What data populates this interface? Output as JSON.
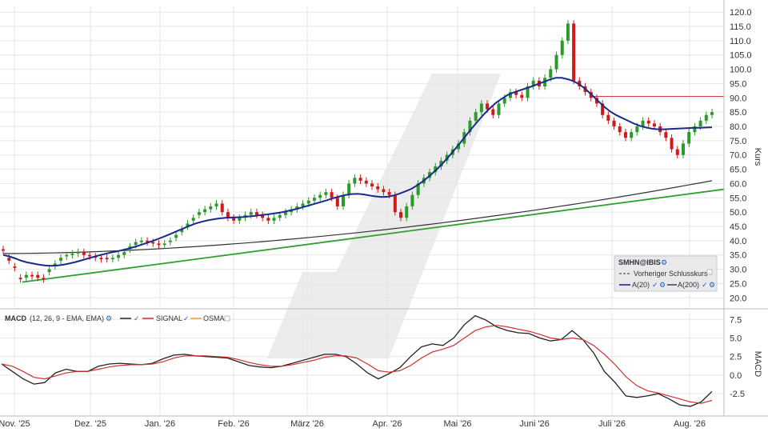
{
  "chart_data": [
    {
      "type": "candlestick",
      "ylabel": "Kurs",
      "ylim": [
        17,
        122
      ],
      "yticks": [
        "120.0",
        "115.0",
        "110.0",
        "105.0",
        "100.0",
        "95.0",
        "90.0",
        "85.0",
        "80.0",
        "75.0",
        "70.0",
        "65.0",
        "60.0",
        "55.0",
        "50.0",
        "45.0",
        "40.0",
        "35.0",
        "30.0",
        "25.0",
        "20.0"
      ],
      "ytick_values": [
        120,
        115,
        110,
        105,
        100,
        95,
        90,
        85,
        80,
        75,
        70,
        65,
        60,
        55,
        50,
        45,
        40,
        35,
        30,
        25,
        20
      ],
      "xticks": [
        "Nov. '25",
        "Dez. '25",
        "Jan. '26",
        "Feb. '26",
        "März '26",
        "Apr. '26",
        "Mai '26",
        "Juni '26",
        "Juli '26",
        "Aug. '26"
      ],
      "candles_close": [
        36.5,
        33,
        30.5,
        26.5,
        28,
        27.5,
        27,
        26.5,
        30,
        32,
        34,
        35,
        35.5,
        36,
        35,
        34.5,
        34,
        33.5,
        33.5,
        34,
        35,
        36,
        38,
        39.5,
        40,
        39.5,
        39,
        38.5,
        39,
        40,
        42,
        44,
        46,
        48,
        50,
        51,
        52,
        53,
        50,
        48,
        47,
        48,
        49,
        50,
        49,
        48,
        47,
        48,
        49,
        50,
        51,
        52,
        53,
        54,
        55,
        56,
        57,
        55,
        52,
        56,
        60,
        62,
        61,
        60,
        59,
        58,
        57,
        56,
        50,
        48,
        52,
        56,
        60,
        62,
        64,
        66,
        68,
        70,
        72,
        74,
        78,
        82,
        85,
        88,
        86,
        84,
        88,
        90,
        92,
        91,
        90,
        94,
        96,
        94,
        97,
        100,
        105,
        110,
        116,
        96,
        94,
        92,
        90,
        88,
        84,
        82,
        80,
        78,
        76,
        78,
        80,
        82,
        81,
        80,
        78,
        76,
        72,
        70,
        74,
        78,
        80,
        82,
        84,
        85
      ],
      "candles_open": [
        37,
        34,
        31,
        27,
        27,
        28,
        28,
        27,
        29,
        31,
        33,
        34.5,
        35,
        35.5,
        36,
        35,
        34.5,
        34,
        34,
        33.5,
        34,
        35,
        37,
        38.5,
        39.5,
        40,
        39.5,
        39,
        38.5,
        39.5,
        41,
        43,
        45,
        47,
        49,
        50,
        51,
        52,
        53,
        50,
        48,
        47,
        48,
        49,
        50,
        49,
        48,
        47,
        48,
        49,
        50,
        51,
        52,
        53,
        54,
        55,
        56,
        57,
        55,
        52,
        56,
        60,
        62,
        61,
        60,
        59,
        58,
        57,
        56,
        50,
        48,
        52,
        56,
        60,
        62,
        64,
        66,
        68,
        70,
        72,
        74,
        78,
        82,
        85,
        88,
        86,
        84,
        88,
        90,
        92,
        91,
        90,
        94,
        96,
        94,
        97,
        100,
        105,
        110,
        116,
        96,
        94,
        92,
        90,
        88,
        84,
        82,
        80,
        78,
        76,
        78,
        80,
        82,
        81,
        80,
        78,
        76,
        72,
        70,
        74,
        78,
        80,
        82,
        84
      ],
      "ma20": [
        35,
        34.5,
        33.8,
        33,
        32.4,
        32,
        31.6,
        31.3,
        31.2,
        31.3,
        31.6,
        32,
        32.5,
        33.1,
        33.7,
        34.3,
        34.9,
        35.4,
        35.9,
        36.3,
        36.8,
        37.3,
        37.9,
        38.6,
        39.3,
        40,
        40.8,
        41.6,
        42.5,
        43.4,
        44.3,
        45.2,
        46,
        46.6,
        47.1,
        47.5,
        47.8,
        48,
        48.1,
        48.2,
        48.3,
        48.5,
        48.7,
        49,
        49.2,
        49.5,
        49.8,
        50.2,
        50.7,
        51.2,
        51.8,
        52.4,
        53,
        53.6,
        54.2,
        54.9,
        55.5,
        56,
        56.3,
        56.4,
        56.2,
        55.8,
        55.5,
        55.3,
        55.4,
        55.8,
        56.5,
        57.3,
        58.2,
        59.5,
        61,
        62.7,
        64.6,
        66.7,
        69,
        71.5,
        74,
        76.7,
        79.3,
        81.8,
        84.2,
        86.3,
        88.2,
        89.7,
        91,
        91.9,
        92.6,
        93.3,
        94,
        94.8,
        95.6,
        96.4,
        97,
        97,
        96.5,
        95.8,
        94.6,
        93,
        91,
        89,
        87,
        85.3,
        84,
        83,
        82,
        81,
        80.2,
        79.6,
        79.2,
        79,
        79,
        79.1,
        79.2,
        79.3,
        79.4,
        79.5,
        79.5,
        79.6,
        79.7
      ],
      "ma200_start": 35.5,
      "ma200_end": 61,
      "trend_line": [
        [
          0,
          25.5
        ],
        [
          1,
          58
        ]
      ],
      "resistance_level": 90.5,
      "legend": {
        "title": "SMHN@IBIS",
        "prev_close": "Vorheriger Schlusskurs",
        "ma20": "A(20)",
        "ma200": "A(200)"
      }
    },
    {
      "type": "line",
      "ylabel": "MACD",
      "ylim": [
        -5.5,
        8.5
      ],
      "yticks": [
        "7.5",
        "5.0",
        "2.5",
        "0.0",
        "-2.5"
      ],
      "ytick_values": [
        7.5,
        5,
        2.5,
        0,
        -2.5
      ],
      "legend": {
        "title": "MACD",
        "params": "(12, 26, 9 - EMA, EMA)",
        "signal": "SIGNAL",
        "osma": "OSMA"
      },
      "series": [
        {
          "name": "MACD",
          "values": [
            1.5,
            0.5,
            -0.5,
            -1.2,
            -1.0,
            0.3,
            0.8,
            0.5,
            0.5,
            1.2,
            1.5,
            1.6,
            1.5,
            1.4,
            1.6,
            2.2,
            2.7,
            2.8,
            2.6,
            2.5,
            2.4,
            2.3,
            1.8,
            1.3,
            1.1,
            1.0,
            1.2,
            1.6,
            2.0,
            2.4,
            2.8,
            2.8,
            2.5,
            1.5,
            0.3,
            -0.5,
            0.2,
            1.0,
            2.5,
            3.8,
            4.2,
            4.0,
            5.0,
            6.8,
            8.0,
            7.4,
            6.5,
            6.0,
            5.7,
            5.6,
            5.0,
            4.6,
            4.8,
            6.0,
            4.8,
            3.0,
            0.5,
            -1.0,
            -2.8,
            -3.0,
            -2.8,
            -2.5,
            -3.2,
            -4.0,
            -4.2,
            -3.6,
            -2.2
          ]
        },
        {
          "name": "SIGNAL",
          "values": [
            1.5,
            1.2,
            0.5,
            -0.3,
            -0.5,
            -0.1,
            0.3,
            0.5,
            0.5,
            0.8,
            1.1,
            1.3,
            1.4,
            1.4,
            1.5,
            1.8,
            2.3,
            2.6,
            2.6,
            2.6,
            2.5,
            2.4,
            2.1,
            1.7,
            1.4,
            1.2,
            1.2,
            1.4,
            1.7,
            2.0,
            2.4,
            2.6,
            2.6,
            2.3,
            1.5,
            0.6,
            0.4,
            0.6,
            1.3,
            2.3,
            3.1,
            3.5,
            4.0,
            5.0,
            6.0,
            6.5,
            6.7,
            6.5,
            6.2,
            5.9,
            5.5,
            5.0,
            4.8,
            5.0,
            4.8,
            4.0,
            2.8,
            1.4,
            -0.2,
            -1.4,
            -2.1,
            -2.4,
            -2.8,
            -3.2,
            -3.6,
            -3.8,
            -3.4
          ]
        }
      ]
    }
  ],
  "colors": {
    "up": "#2a9a2a",
    "down": "#d01a1a",
    "ma20": "#1a2a8c",
    "ma200": "#333333",
    "trend": "#2fa02f",
    "resistance": "#d04040",
    "macd": "#222222",
    "signal": "#d03030",
    "osma": "#e8a33c",
    "grid": "#e6e6e6",
    "watermark": "#dcdcdc"
  }
}
